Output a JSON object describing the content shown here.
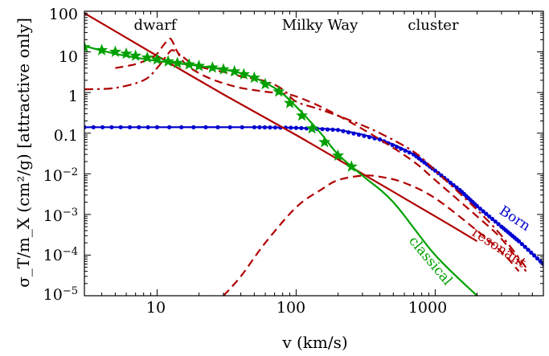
{
  "chart_data": {
    "type": "line",
    "title": "",
    "xlabel": "v (km/s)",
    "ylabel": "σ_T/m_X (cm²/g) [attractive only]",
    "xscale": "log",
    "yscale": "log",
    "xlim": [
      3,
      6000
    ],
    "ylim": [
      1e-05,
      100
    ],
    "grid": false,
    "x_tick_labels": [
      "10",
      "100",
      "1000"
    ],
    "y_tick_labels": [
      "100",
      "10",
      "1",
      "0.1",
      "10^-2",
      "10^-3",
      "10^-4",
      "10^-5"
    ],
    "annotations": [
      {
        "text": "dwarf",
        "x": 13
      },
      {
        "text": "Milky Way",
        "x": 140
      },
      {
        "text": "cluster",
        "x": 1100
      }
    ],
    "colors": {
      "born": "#0000d0",
      "resonant": "#b00000",
      "classical": "#00a000"
    },
    "curve_labels": {
      "born": "Born",
      "resonant": "resonant",
      "classical": "classical"
    },
    "series": [
      {
        "name": "Born",
        "style": "solid",
        "color": "#0000d0",
        "x": [
          3,
          10,
          50,
          100,
          200,
          400,
          700,
          1000,
          1500,
          2000,
          3000,
          4000,
          6000
        ],
        "y": [
          0.14,
          0.14,
          0.14,
          0.135,
          0.12,
          0.07,
          0.03,
          0.012,
          0.004,
          0.0016,
          0.0005,
          0.00022,
          6e-05
        ]
      },
      {
        "name": "Born points",
        "style": "markers",
        "color": "#0000d0",
        "x": [
          3,
          10,
          50,
          100,
          200,
          400,
          700,
          1000,
          1500,
          2000,
          3000,
          4000,
          6000
        ],
        "y": [
          0.14,
          0.14,
          0.14,
          0.135,
          0.12,
          0.07,
          0.03,
          0.012,
          0.004,
          0.0016,
          0.0005,
          0.00022,
          6e-05
        ]
      },
      {
        "name": "resonant power law",
        "style": "solid",
        "color": "#b00000",
        "x": [
          3,
          10,
          30,
          100,
          300,
          1000,
          2000
        ],
        "y": [
          90,
          8,
          0.9,
          0.09,
          0.01,
          0.0009,
          0.00022
        ]
      },
      {
        "name": "resonant dash-dot",
        "style": "dashdot",
        "color": "#b00000",
        "x": [
          3,
          5,
          8,
          10,
          12,
          13,
          15,
          18,
          22,
          30,
          40,
          60,
          80,
          100,
          150,
          250,
          400,
          700,
          1000,
          2000,
          3000,
          4500
        ],
        "y": [
          1.2,
          1.3,
          2,
          4,
          9,
          11,
          8,
          5,
          4,
          3.2,
          2.5,
          1.9,
          1.2,
          0.6,
          0.38,
          0.2,
          0.1,
          0.035,
          0.012,
          0.0013,
          0.0003,
          5e-05
        ]
      },
      {
        "name": "resonant dashed peak",
        "style": "dashed",
        "color": "#b00000",
        "x": [
          5,
          7,
          9,
          10,
          11,
          12,
          12.5,
          13,
          14,
          16,
          20,
          25,
          30,
          40,
          60,
          80,
          100,
          150,
          250,
          400,
          700,
          1000,
          2000,
          3000,
          4500
        ],
        "y": [
          4,
          5,
          7,
          9,
          14,
          20,
          21,
          17,
          10,
          5,
          3,
          2.1,
          1.7,
          1.3,
          1.05,
          0.95,
          0.8,
          0.45,
          0.18,
          0.07,
          0.02,
          0.007,
          0.0009,
          0.00025,
          4e-05
        ]
      },
      {
        "name": "resonant dashed rising",
        "style": "dashed",
        "color": "#b00000",
        "x": [
          30,
          40,
          60,
          100,
          150,
          200,
          300,
          400,
          600,
          1000,
          2000,
          3000,
          4000
        ],
        "y": [
          1e-05,
          3e-05,
          0.0002,
          0.0015,
          0.004,
          0.007,
          0.009,
          0.0085,
          0.006,
          0.0025,
          0.0004,
          0.00012,
          4e-05
        ]
      },
      {
        "name": "classical",
        "style": "solid",
        "color": "#00a000",
        "x": [
          3,
          5,
          10,
          20,
          40,
          70,
          100,
          150,
          200,
          300,
          500,
          1000,
          2000
        ],
        "y": [
          14,
          9,
          6,
          4.5,
          3,
          1.3,
          0.45,
          0.1,
          0.03,
          0.009,
          0.002,
          0.0001,
          1e-05
        ]
      },
      {
        "name": "classical stars",
        "style": "stars",
        "color": "#00a000",
        "x": [
          3,
          4,
          5,
          6,
          7,
          8.5,
          10,
          12,
          14,
          17,
          20,
          25,
          30,
          36,
          42,
          50,
          60,
          75,
          90,
          110,
          130,
          160,
          200,
          250
        ],
        "y": [
          13,
          11,
          10,
          9,
          8,
          7.2,
          6.5,
          5.8,
          5.3,
          4.9,
          4.5,
          4.1,
          3.7,
          3.3,
          2.8,
          2.3,
          1.6,
          1.05,
          0.55,
          0.27,
          0.13,
          0.06,
          0.028,
          0.015
        ]
      }
    ]
  }
}
